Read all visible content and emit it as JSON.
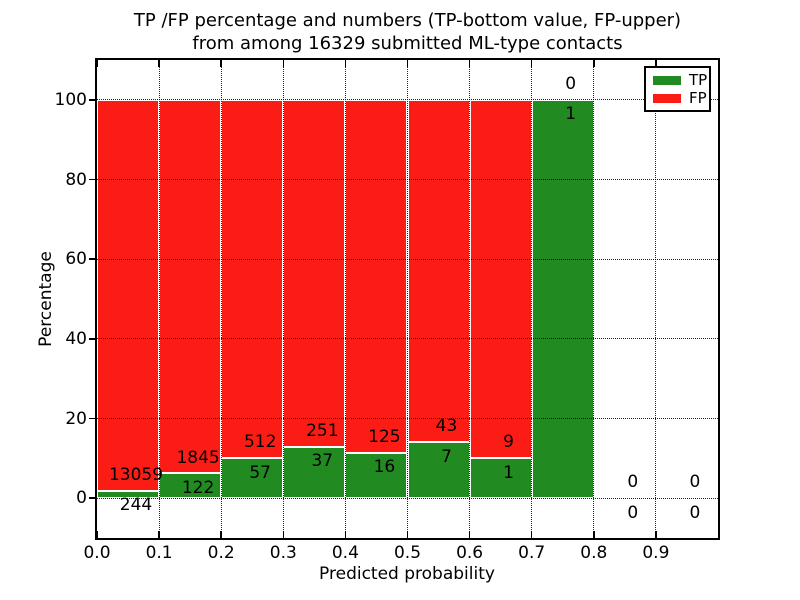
{
  "chart_data": {
    "type": "bar",
    "stacked": true,
    "title_line1": "TP /FP percentage and numbers (TP-bottom value, FP-upper)",
    "title_line2": "from among 16329 submitted ML-type contacts",
    "xlabel": "Predicted probability",
    "ylabel": "Percentage",
    "xlim": [
      0.0,
      1.0
    ],
    "ylim": [
      -10,
      110
    ],
    "grid": true,
    "xtick_values": [
      0.0,
      0.1,
      0.2,
      0.3,
      0.4,
      0.5,
      0.6,
      0.7,
      0.8,
      0.9
    ],
    "xtick_labels": [
      "0.0",
      "0.1",
      "0.2",
      "0.3",
      "0.4",
      "0.5",
      "0.6",
      "0.7",
      "0.8",
      "0.9"
    ],
    "ytick_values": [
      0,
      20,
      40,
      60,
      80,
      100
    ],
    "ytick_labels": [
      "0",
      "20",
      "40",
      "60",
      "80",
      "100"
    ],
    "colors": {
      "tp": "#218a21",
      "fp": "#fb1d15"
    },
    "legend": {
      "position": "upper-right",
      "entries": [
        {
          "label": "TP",
          "color": "#218a21"
        },
        {
          "label": "FP",
          "color": "#fb1d15"
        }
      ]
    },
    "bins": [
      {
        "range": [
          0.0,
          0.1
        ],
        "tp": 244,
        "fp": 13059,
        "tp_pct": 1.83,
        "fp_pct": 98.17
      },
      {
        "range": [
          0.1,
          0.2
        ],
        "tp": 122,
        "fp": 1845,
        "tp_pct": 6.2,
        "fp_pct": 93.8
      },
      {
        "range": [
          0.2,
          0.3
        ],
        "tp": 57,
        "fp": 512,
        "tp_pct": 10.02,
        "fp_pct": 89.98
      },
      {
        "range": [
          0.3,
          0.4
        ],
        "tp": 37,
        "fp": 251,
        "tp_pct": 12.85,
        "fp_pct": 87.15
      },
      {
        "range": [
          0.4,
          0.5
        ],
        "tp": 16,
        "fp": 125,
        "tp_pct": 11.35,
        "fp_pct": 88.65
      },
      {
        "range": [
          0.5,
          0.6
        ],
        "tp": 7,
        "fp": 43,
        "tp_pct": 14.0,
        "fp_pct": 86.0
      },
      {
        "range": [
          0.6,
          0.7
        ],
        "tp": 1,
        "fp": 9,
        "tp_pct": 10.0,
        "fp_pct": 90.0
      },
      {
        "range": [
          0.7,
          0.8
        ],
        "tp": 1,
        "fp": 0,
        "tp_pct": 100.0,
        "fp_pct": 0.0
      },
      {
        "range": [
          0.8,
          0.9
        ],
        "tp": 0,
        "fp": 0,
        "tp_pct": 0.0,
        "fp_pct": 0.0
      },
      {
        "range": [
          0.9,
          1.0
        ],
        "tp": 0,
        "fp": 0,
        "tp_pct": 0.0,
        "fp_pct": 0.0
      }
    ]
  }
}
